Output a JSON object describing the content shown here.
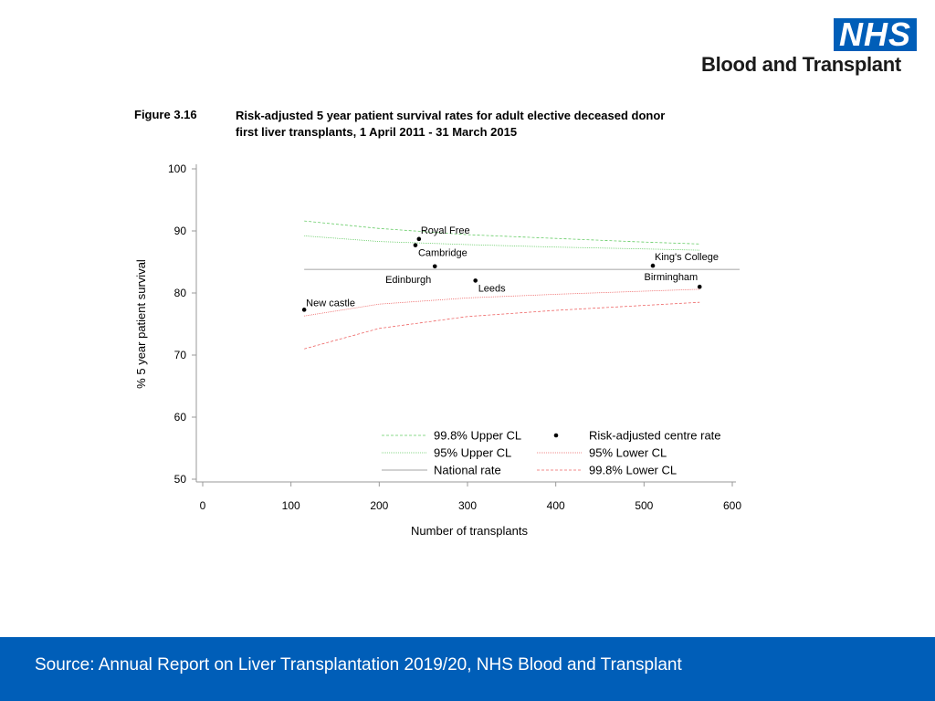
{
  "logo": {
    "nhs_text": "NHS",
    "org_name": "Blood and Transplant"
  },
  "figure": {
    "label": "Figure 3.16",
    "title_line1": "Risk-adjusted 5 year patient survival rates for adult elective deceased donor",
    "title_line2": "first liver transplants, 1 April 2011 - 31 March 2015"
  },
  "chart_data": {
    "type": "scatter",
    "title": "Risk-adjusted 5 year patient survival rates for adult elective deceased donor first liver transplants, 1 April 2011 - 31 March 2015",
    "xlabel": "Number of transplants",
    "ylabel": "% 5 year patient survival",
    "xlim": [
      0,
      600
    ],
    "ylim": [
      50,
      100
    ],
    "xticks": [
      0,
      100,
      200,
      300,
      400,
      500,
      600
    ],
    "yticks": [
      50,
      60,
      70,
      80,
      90,
      100
    ],
    "grid": false,
    "legend_position": "bottom-right",
    "points": [
      {
        "name": "Royal Free",
        "x": 245,
        "y": 88.7
      },
      {
        "name": "Cambridge",
        "x": 241,
        "y": 87.7
      },
      {
        "name": "Edinburgh",
        "x": 263,
        "y": 84.3
      },
      {
        "name": "Leeds",
        "x": 309,
        "y": 82.0
      },
      {
        "name": "King's College",
        "x": 510,
        "y": 84.4
      },
      {
        "name": "Birmingham",
        "x": 563,
        "y": 81.0
      },
      {
        "name": "New castle",
        "x": 115,
        "y": 77.3
      }
    ],
    "national_rate": 83.8,
    "limits_x": [
      115,
      200,
      300,
      400,
      500,
      563
    ],
    "series": [
      {
        "name": "99.8% Upper CL",
        "color": "#66cc66",
        "dash": "3,2",
        "values": [
          91.6,
          90.4,
          89.4,
          88.8,
          88.2,
          87.9
        ]
      },
      {
        "name": "95% Upper CL",
        "color": "#66cc66",
        "dash": "1,1",
        "values": [
          89.2,
          88.3,
          87.8,
          87.4,
          87.1,
          86.9
        ]
      },
      {
        "name": "National rate",
        "color": "#888888",
        "dash": "",
        "values": [
          83.8,
          83.8,
          83.8,
          83.8,
          83.8,
          83.8
        ]
      },
      {
        "name": "95% Lower CL",
        "color": "#ee6666",
        "dash": "1,1",
        "values": [
          76.3,
          78.2,
          79.2,
          79.8,
          80.3,
          80.6
        ]
      },
      {
        "name": "99.8% Lower CL",
        "color": "#ee6666",
        "dash": "3,2",
        "values": [
          71.0,
          74.3,
          76.2,
          77.2,
          78.0,
          78.5
        ]
      }
    ],
    "legend": [
      {
        "label": "99.8% Upper CL",
        "kind": "line",
        "series": 0
      },
      {
        "label": "Risk-adjusted centre rate",
        "kind": "point"
      },
      {
        "label": "95% Upper CL",
        "kind": "line",
        "series": 1
      },
      {
        "label": "95% Lower CL",
        "kind": "line",
        "series": 3
      },
      {
        "label": "National rate",
        "kind": "line",
        "series": 2
      },
      {
        "label": "99.8% Lower CL",
        "kind": "line",
        "series": 4
      }
    ]
  },
  "footer": {
    "source": "Source: Annual Report on Liver Transplantation 2019/20, NHS Blood and Transplant"
  }
}
